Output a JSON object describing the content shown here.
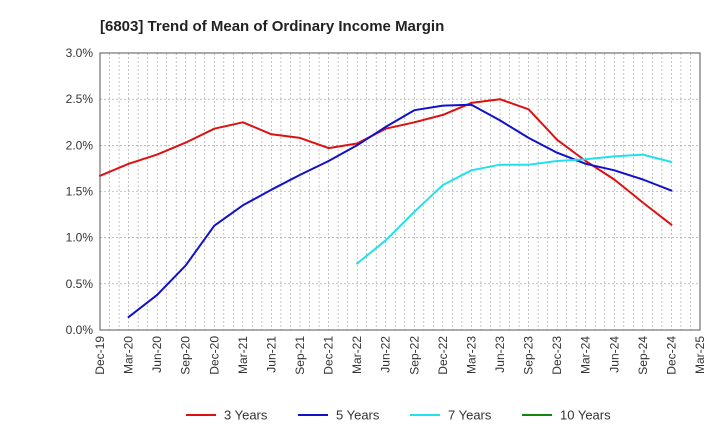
{
  "chart_data": {
    "type": "line",
    "title": "[6803]  Trend of Mean of Ordinary Income Margin",
    "xlabel": "",
    "ylabel": "",
    "categories": [
      "Dec-19",
      "Mar-20",
      "Jun-20",
      "Sep-20",
      "Dec-20",
      "Mar-21",
      "Jun-21",
      "Sep-21",
      "Dec-21",
      "Mar-22",
      "Jun-22",
      "Sep-22",
      "Dec-22",
      "Mar-23",
      "Jun-23",
      "Sep-23",
      "Dec-23",
      "Mar-24",
      "Jun-24",
      "Sep-24",
      "Dec-24",
      "Mar-25"
    ],
    "y_ticks": [
      "0.0%",
      "0.5%",
      "1.0%",
      "1.5%",
      "2.0%",
      "2.5%",
      "3.0%"
    ],
    "ylim": [
      0,
      3.0
    ],
    "grid": true,
    "legend_position": "bottom",
    "series": [
      {
        "name": "3 Years",
        "color": "#dd1111",
        "x": [
          0,
          1,
          2,
          3,
          4,
          5,
          6,
          7,
          8,
          9,
          10,
          11,
          12,
          13,
          14,
          15,
          16,
          17,
          18,
          19,
          20
        ],
        "values": [
          1.67,
          1.8,
          1.9,
          2.03,
          2.18,
          2.25,
          2.12,
          2.08,
          1.97,
          2.02,
          2.18,
          2.25,
          2.33,
          2.46,
          2.5,
          2.39,
          2.06,
          1.83,
          1.63,
          1.38,
          1.14
        ]
      },
      {
        "name": "5 Years",
        "color": "#1111cc",
        "x": [
          1,
          2,
          3,
          4,
          5,
          6,
          7,
          8,
          9,
          10,
          11,
          12,
          13,
          14,
          15,
          16,
          17,
          18,
          19,
          20
        ],
        "values": [
          0.14,
          0.38,
          0.7,
          1.13,
          1.35,
          1.52,
          1.68,
          1.83,
          2.0,
          2.2,
          2.38,
          2.43,
          2.44,
          2.27,
          2.08,
          1.92,
          1.8,
          1.73,
          1.63,
          1.51
        ]
      },
      {
        "name": "7 Years",
        "color": "#22e0ee",
        "x": [
          9,
          10,
          11,
          12,
          13,
          14,
          15,
          16,
          17,
          18,
          19,
          20
        ],
        "values": [
          0.72,
          0.97,
          1.28,
          1.57,
          1.73,
          1.79,
          1.79,
          1.83,
          1.85,
          1.88,
          1.9,
          1.82
        ]
      },
      {
        "name": "10 Years",
        "color": "#118811",
        "x": [],
        "values": []
      }
    ]
  }
}
